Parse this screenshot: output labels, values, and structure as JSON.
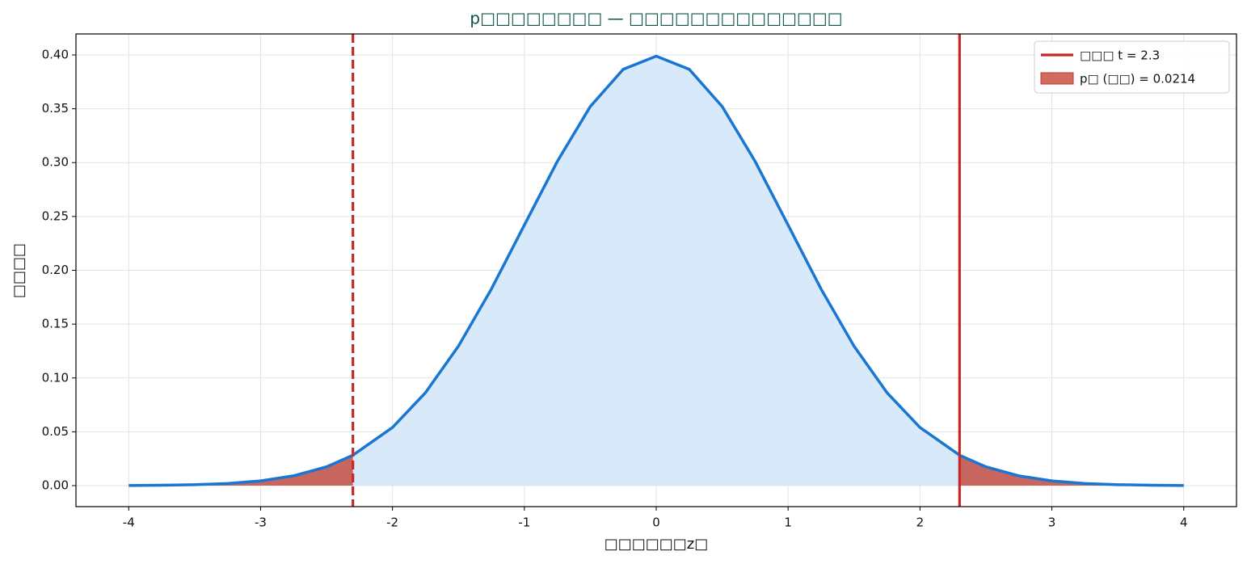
{
  "chart_data": {
    "type": "line",
    "title": "p□□□□□□□□ — □□□□□□□□□□□□□□",
    "xlabel": "□□□□□□z□",
    "ylabel": "□□□□",
    "x": [
      -4,
      -3.75,
      -3.5,
      -3.25,
      -3,
      -2.75,
      -2.5,
      -2.3,
      -2,
      -1.75,
      -1.5,
      -1.25,
      -1,
      -0.75,
      -0.5,
      -0.25,
      0,
      0.25,
      0.5,
      0.75,
      1,
      1.25,
      1.5,
      1.75,
      2,
      2.3,
      2.5,
      2.75,
      3,
      3.25,
      3.5,
      3.75,
      4
    ],
    "series": [
      {
        "color": "#1976d2",
        "fill": "#d8eaf9",
        "values": [
          0.0001,
          0.0004,
          0.0009,
          0.002,
          0.0044,
          0.0091,
          0.0175,
          0.0283,
          0.054,
          0.0863,
          0.1295,
          0.1826,
          0.242,
          0.3011,
          0.3521,
          0.3867,
          0.3989,
          0.3867,
          0.3521,
          0.3011,
          0.242,
          0.1826,
          0.1295,
          0.0863,
          0.054,
          0.0283,
          0.0175,
          0.0091,
          0.0044,
          0.002,
          0.0009,
          0.0004,
          0.0001
        ]
      }
    ],
    "vlines": [
      {
        "x": -2.3,
        "color": "#c62828",
        "dashed": true
      },
      {
        "x": 2.3,
        "color": "#c62828",
        "dashed": false,
        "label": "□□□ t = 2.3"
      }
    ],
    "shade": {
      "color": "#c0392b",
      "label": "p□ (□□) = 0.0214"
    },
    "xlim": [
      -4.4,
      4.4
    ],
    "xticks": [
      -4,
      -3,
      -2,
      -1,
      0,
      1,
      2,
      3,
      4
    ],
    "ylim": [
      -0.0195,
      0.4195
    ],
    "yticks": [
      {
        "value": 0,
        "label": "0.00"
      },
      {
        "value": 0.05,
        "label": "0.05"
      },
      {
        "value": 0.1,
        "label": "0.10"
      },
      {
        "value": 0.15,
        "label": "0.15"
      },
      {
        "value": 0.2,
        "label": "0.20"
      },
      {
        "value": 0.25,
        "label": "0.25"
      },
      {
        "value": 0.3,
        "label": "0.30"
      },
      {
        "value": 0.35,
        "label": "0.35"
      },
      {
        "value": 0.4,
        "label": "0.40"
      }
    ],
    "grid": true,
    "legend": "upper right"
  }
}
